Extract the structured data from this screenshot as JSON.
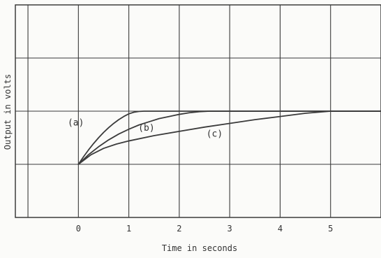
{
  "chart_data": {
    "type": "line",
    "title": "",
    "xlabel": "Time in seconds",
    "ylabel": "Output in volts",
    "xlim": [
      -1.25,
      6
    ],
    "ylim": [
      -1,
      3
    ],
    "grid": true,
    "x_ticks": [
      0,
      1,
      2,
      3,
      4,
      5
    ],
    "x_tick_labels": [
      "0",
      "1",
      "2",
      "3",
      "4",
      "5"
    ],
    "y_tick_labels": [],
    "series": [
      {
        "name": "(a)",
        "x": [
          0,
          0.1,
          0.2,
          0.3,
          0.4,
          0.5,
          0.6,
          0.7,
          0.8,
          0.9,
          1.0,
          1.1,
          1.2,
          1.3,
          1.4,
          1.5,
          6
        ],
        "y": [
          0,
          0.14,
          0.27,
          0.39,
          0.5,
          0.6,
          0.69,
          0.77,
          0.84,
          0.9,
          0.95,
          0.98,
          0.995,
          1,
          1,
          1,
          1
        ]
      },
      {
        "name": "(b)",
        "x": [
          0,
          0.2,
          0.4,
          0.6,
          0.8,
          1.0,
          1.2,
          1.4,
          1.6,
          1.8,
          2.0,
          2.2,
          2.4,
          2.6,
          2.8,
          3.0,
          6
        ],
        "y": [
          0,
          0.18,
          0.33,
          0.46,
          0.57,
          0.66,
          0.74,
          0.8,
          0.86,
          0.9,
          0.94,
          0.97,
          0.99,
          1,
          1,
          1,
          1
        ]
      },
      {
        "name": "(c)",
        "x": [
          0,
          0.25,
          0.5,
          0.75,
          1.0,
          1.5,
          2.0,
          2.5,
          3.0,
          3.5,
          4.0,
          4.5,
          5.0,
          6
        ],
        "y": [
          0,
          0.18,
          0.3,
          0.38,
          0.44,
          0.54,
          0.62,
          0.7,
          0.77,
          0.84,
          0.9,
          0.96,
          1,
          1
        ]
      }
    ],
    "labels": [
      {
        "text": "(a)",
        "x": -0.05,
        "y": 0.73
      },
      {
        "text": "(b)",
        "x": 1.35,
        "y": 0.63
      },
      {
        "text": "(c)",
        "x": 2.7,
        "y": 0.52
      }
    ]
  }
}
